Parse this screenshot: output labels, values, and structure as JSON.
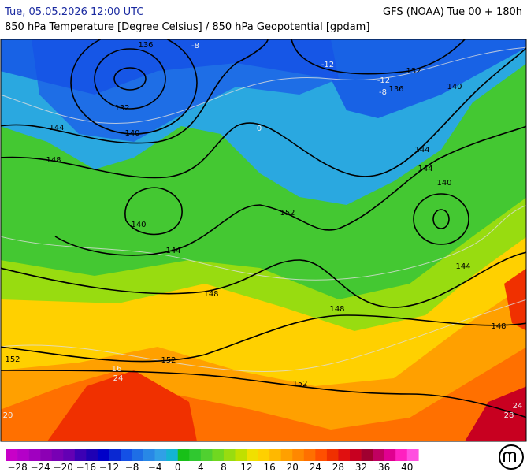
{
  "header": {
    "left": "Tue, 05.05.2026 12:00 UTC",
    "right": "GFS (NOAA) Tue 00 + 180h",
    "subtitle": "850 hPa Temperature [Degree Celsius] / 850 hPa Geopotential [gpdam]"
  },
  "map": {
    "geopotential_labels": [
      "136",
      "132",
      "140",
      "144",
      "148",
      "140",
      "144",
      "148",
      "152",
      "144",
      "144",
      "140",
      "132",
      "136",
      "140",
      "144",
      "148",
      "148",
      "152",
      "152",
      "152"
    ],
    "temperature_labels": [
      "-12",
      "-12",
      "-8",
      "-8",
      "0",
      "16",
      "24",
      "20",
      "24",
      "28"
    ]
  },
  "colorbar": {
    "labels": [
      "−28",
      "−24",
      "−20",
      "−16",
      "−12",
      "−8",
      "−4",
      "0",
      "4",
      "8",
      "12",
      "16",
      "20",
      "24",
      "28",
      "32",
      "36",
      "40"
    ],
    "colors": [
      "#c800c8",
      "#b400c8",
      "#a000c0",
      "#8c00b4",
      "#7800b4",
      "#6400b4",
      "#3c00b4",
      "#1e00b4",
      "#0000c8",
      "#0a28d2",
      "#1450e6",
      "#1e6ee6",
      "#2888e6",
      "#30a0e6",
      "#14b4d2",
      "#18c018",
      "#30c830",
      "#50d030",
      "#70d820",
      "#98dc10",
      "#c0e000",
      "#f0e000",
      "#ffd000",
      "#ffb800",
      "#ffa000",
      "#ff8800",
      "#ff7000",
      "#ff5000",
      "#f03000",
      "#e01010",
      "#c80020",
      "#a00030",
      "#c00060",
      "#e00090",
      "#ff20c0",
      "#ff50e0"
    ]
  }
}
